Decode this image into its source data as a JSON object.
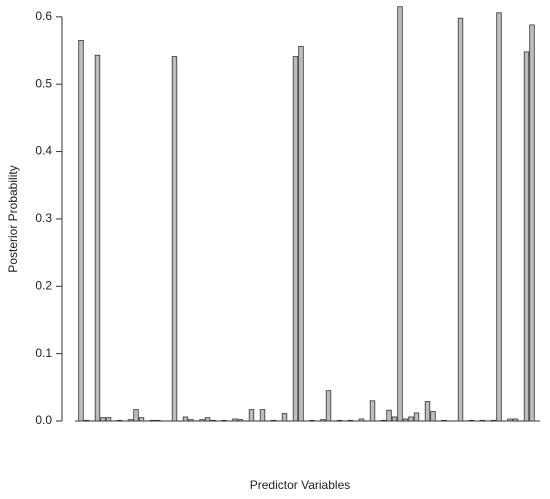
{
  "chart_data": {
    "type": "bar",
    "x_label": "Predictor Variables",
    "y_label": "Posterior Probability",
    "categories": [
      null,
      null,
      null,
      null,
      null,
      null,
      null,
      null,
      null,
      null,
      null,
      null,
      null,
      null,
      null,
      null,
      null,
      null,
      null,
      null,
      null,
      null,
      null,
      null,
      null,
      null,
      null,
      null,
      null,
      null,
      null,
      null,
      null,
      null,
      null,
      null,
      null,
      null,
      null,
      null,
      null,
      null,
      null,
      null,
      null,
      null,
      null,
      null,
      null,
      null,
      null,
      null,
      null,
      null,
      null,
      null,
      null,
      null,
      null,
      null,
      null,
      null,
      null,
      null,
      null,
      null,
      null,
      null,
      null,
      null,
      null,
      null,
      null,
      null,
      null,
      null,
      null,
      null,
      null,
      null,
      null,
      null,
      null,
      null
    ],
    "values": [
      0.565,
      0.001,
      0,
      0.543,
      0.005,
      0.005,
      0,
      0.001,
      0,
      0.002,
      0.017,
      0.005,
      0,
      0.001,
      0.001,
      0,
      0,
      0.541,
      0,
      0.006,
      0.002,
      0,
      0.002,
      0.005,
      0.001,
      0,
      0.001,
      0,
      0.003,
      0.002,
      0,
      0.017,
      0,
      0.017,
      0,
      0.001,
      0,
      0.011,
      0,
      0.541,
      0.556,
      0,
      0.001,
      0,
      0.002,
      0.045,
      0,
      0.001,
      0,
      0.001,
      0,
      0.003,
      0,
      0.03,
      0,
      0.001,
      0.016,
      0.006,
      0.615,
      0.003,
      0.006,
      0.012,
      0,
      0.029,
      0.014,
      0,
      0.001,
      0,
      0,
      0.598,
      0,
      0.001,
      0,
      0.001,
      0,
      0.001,
      0.606,
      0,
      0.003,
      0.003,
      0,
      0.548,
      0.588,
      0
    ],
    "color": "#bdbdbd",
    "ylim": [
      0,
      0.625
    ],
    "yticks": [
      {
        "value": 0,
        "label": "0.0"
      },
      0.1,
      0.2,
      0.3,
      0.4,
      0.5,
      0.6
    ]
  }
}
